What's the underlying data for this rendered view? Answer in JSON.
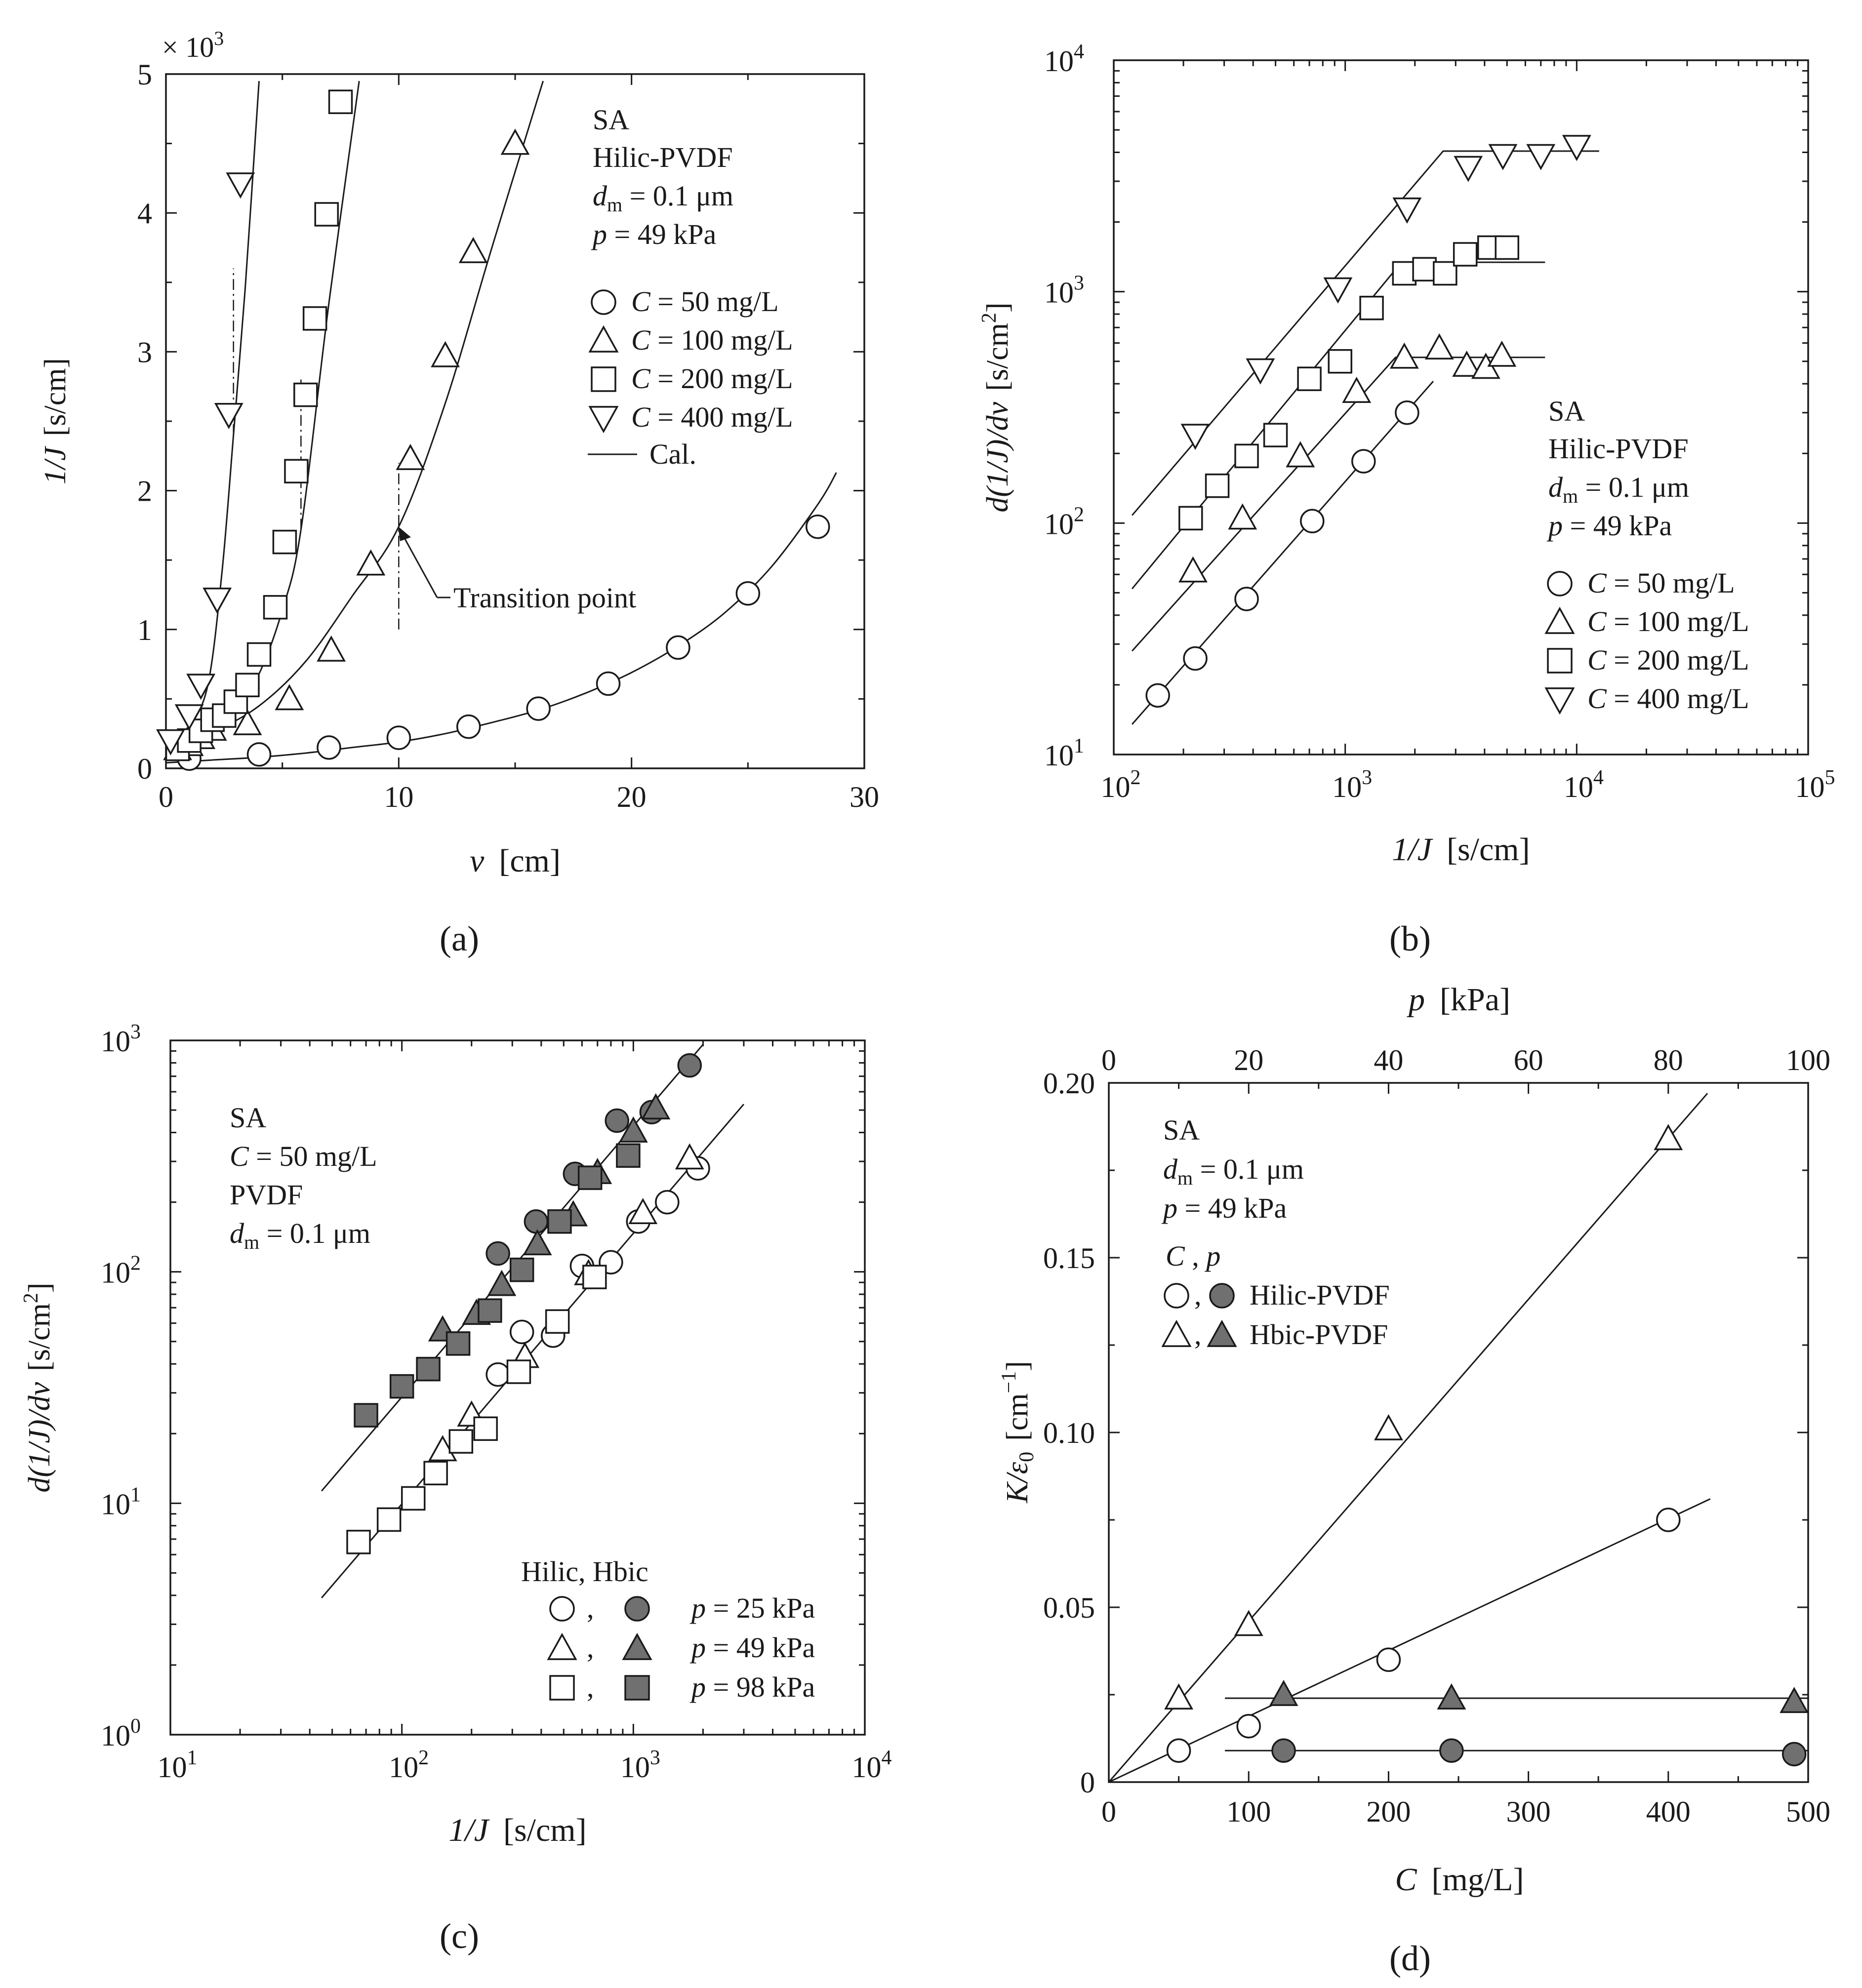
{
  "chart_data": [
    {
      "panel": "a",
      "type": "scatter",
      "caption": "(a)",
      "xlabel": "v",
      "xunit": "[cm]",
      "ylabel": "1/J",
      "yunit": "[s/cm]",
      "multiplier": "× 10",
      "multiplier_exp": "3",
      "xscale": "linear",
      "yscale": "linear",
      "xlim": [
        0,
        30
      ],
      "ylim": [
        0,
        5
      ],
      "xticks": [
        0,
        10,
        20,
        30
      ],
      "xtick_labels": [
        "0",
        "10",
        "20",
        "30"
      ],
      "yticks": [
        0,
        1,
        2,
        3,
        4,
        5
      ],
      "ytick_labels": [
        "0",
        "1",
        "2",
        "3",
        "4",
        "5"
      ],
      "legend_lines": [
        "SA",
        "Hilic-PVDF",
        "d_m = 0.1 μm",
        "p = 49 kPa"
      ],
      "legend_title_text": "SA",
      "legend_membrane": "Hilic-PVDF",
      "legend_dm_sym": "d",
      "legend_dm_sub": "m",
      "legend_dm_val": " = 0.1 μm",
      "legend_p_sym": "p",
      "legend_p_val": " = 49 kPa",
      "legend_placement": "top-right",
      "annotation": "Transition point",
      "cal_label": "Cal.",
      "series": [
        {
          "name": "C = 50 mg/L",
          "sym": "C",
          "text": " =   50 mg/L",
          "marker": "circle",
          "fill": "open",
          "x": [
            1,
            4,
            7,
            10,
            13,
            16,
            19,
            22,
            25,
            28
          ],
          "y": [
            0.07,
            0.1,
            0.15,
            0.22,
            0.3,
            0.43,
            0.61,
            0.87,
            1.26,
            1.74
          ]
        },
        {
          "name": "C = 100 mg/L",
          "sym": "C",
          "text": " = 100 mg/L",
          "marker": "triangle-up",
          "fill": "open",
          "x": [
            0.5,
            1.0,
            1.5,
            2.0,
            3.5,
            5.3,
            7.1,
            8.8,
            10.5,
            12.0,
            13.2,
            15.0
          ],
          "y": [
            0.14,
            0.17,
            0.22,
            0.28,
            0.32,
            0.5,
            0.85,
            1.47,
            2.23,
            2.97,
            3.72,
            4.5
          ]
        },
        {
          "name": "C = 200 mg/L",
          "sym": "C",
          "text": " = 200 mg/L",
          "marker": "square",
          "fill": "open",
          "x": [
            0.5,
            1.0,
            1.5,
            2.0,
            2.5,
            3.0,
            3.5,
            4.0,
            4.7,
            5.1,
            5.6,
            6.0,
            6.4,
            6.9,
            7.5
          ],
          "y": [
            0.14,
            0.2,
            0.27,
            0.35,
            0.38,
            0.48,
            0.6,
            0.82,
            1.16,
            1.63,
            2.14,
            2.69,
            3.24,
            3.99,
            4.8
          ]
        },
        {
          "name": "C = 400 mg/L",
          "sym": "C",
          "text": " = 400 mg/L",
          "marker": "triangle-down",
          "fill": "open",
          "x": [
            0.2,
            1.0,
            1.5,
            2.2,
            2.7,
            3.2
          ],
          "y": [
            0.2,
            0.38,
            0.6,
            1.22,
            2.55,
            4.21
          ]
        }
      ],
      "fit_curves": [
        {
          "name": "Cal. 50",
          "x": [
            0,
            2,
            4,
            6,
            8,
            10,
            12,
            14,
            16,
            18,
            20,
            22,
            24,
            26,
            28,
            28.8
          ],
          "y": [
            0.04,
            0.06,
            0.08,
            0.11,
            0.15,
            0.19,
            0.25,
            0.33,
            0.42,
            0.54,
            0.69,
            0.88,
            1.12,
            1.45,
            1.9,
            2.13
          ]
        },
        {
          "name": "Cal. 100",
          "x": [
            0,
            2,
            4,
            6,
            8,
            10,
            12,
            14,
            16.2
          ],
          "y": [
            0.12,
            0.26,
            0.45,
            0.77,
            1.24,
            1.74,
            2.63,
            3.75,
            4.95
          ]
        },
        {
          "name": "Cal. 200",
          "x": [
            0,
            1,
            2,
            3,
            4,
            5,
            5.8,
            7,
            8.3
          ],
          "y": [
            0.12,
            0.2,
            0.3,
            0.42,
            0.68,
            1.14,
            1.72,
            3.35,
            4.95
          ]
        },
        {
          "name": "Cal. 400",
          "x": [
            0,
            1,
            1.8,
            2.4,
            2.9,
            3.4,
            4.0
          ],
          "y": [
            0.14,
            0.31,
            0.6,
            1.4,
            2.4,
            3.45,
            4.95
          ]
        }
      ],
      "transition_markers": [
        {
          "x": 2.9,
          "y_from": 2.4,
          "y_to": 3.6
        },
        {
          "x": 5.8,
          "y_from": 1.72,
          "y_to": 2.8
        },
        {
          "x": 10.0,
          "y_from": 1.0,
          "y_to": 2.2
        }
      ]
    },
    {
      "panel": "b",
      "type": "scatter",
      "caption": "(b)",
      "xlabel": "1/J",
      "xunit": "[s/cm]",
      "ylabel": "d(1/J)/dv",
      "yunit": "[s/cm",
      "yunit_sup": "2",
      "yunit_end": "]",
      "xscale": "log",
      "yscale": "log",
      "xlim": [
        100,
        100000
      ],
      "ylim": [
        10,
        10000
      ],
      "xticks": [
        100,
        1000,
        10000,
        100000
      ],
      "xtick_base": "10",
      "xtick_exps": [
        "2",
        "3",
        "4",
        "5"
      ],
      "yticks": [
        10,
        100,
        1000,
        10000
      ],
      "ytick_base": "10",
      "ytick_exps": [
        "1",
        "2",
        "3",
        "4"
      ],
      "legend_lines": [
        "SA",
        "Hilic-PVDF",
        "d_m = 0.1 μm",
        "p = 49 kPa"
      ],
      "legend_title_text": "SA",
      "legend_membrane": "Hilic-PVDF",
      "legend_dm_sym": "d",
      "legend_dm_sub": "m",
      "legend_dm_val": " = 0.1 μm",
      "legend_p_sym": "p",
      "legend_p_val": " = 49 kPa",
      "legend_placement": "bottom-right",
      "series": [
        {
          "name": "C = 50 mg/L",
          "sym": "C",
          "text": " =   50 mg/L",
          "marker": "circle",
          "fill": "open",
          "x": [
            155,
            225,
            375,
            720,
            1200,
            1850
          ],
          "y": [
            18,
            26,
            47,
            102,
            185,
            300
          ]
        },
        {
          "name": "C = 100 mg/L",
          "sym": "C",
          "text": " = 100 mg/L",
          "marker": "triangle-up",
          "fill": "open",
          "x": [
            220,
            360,
            640,
            1120,
            1800,
            2550,
            3350,
            4050,
            4750
          ],
          "y": [
            62,
            105,
            195,
            370,
            520,
            570,
            480,
            470,
            530
          ]
        },
        {
          "name": "C = 200 mg/L",
          "sym": "C",
          "text": " = 200 mg/L",
          "marker": "square",
          "fill": "open",
          "x": [
            215,
            280,
            375,
            500,
            700,
            950,
            1300,
            1800,
            2200,
            2700,
            3300,
            4200,
            5000
          ],
          "y": [
            105,
            145,
            195,
            240,
            420,
            500,
            850,
            1200,
            1250,
            1200,
            1450,
            1550,
            1550
          ]
        },
        {
          "name": "C = 400 mg/L",
          "sym": "C",
          "text": " = 400 mg/L",
          "marker": "triangle-down",
          "fill": "open",
          "x": [
            225,
            430,
            930,
            1850,
            3400,
            4800,
            7000,
            10000
          ],
          "y": [
            240,
            460,
            1030,
            2280,
            3450,
            3880,
            3880,
            4250
          ]
        }
      ],
      "fit_lines": [
        {
          "name": "Cal. 50",
          "x": [
            120,
            2400
          ],
          "y": [
            13.5,
            410
          ]
        },
        {
          "name": "Cal. 100",
          "x": [
            120,
            1650,
            7300
          ],
          "y": [
            28,
            520,
            520
          ]
        },
        {
          "name": "Cal. 200",
          "x": [
            120,
            1750,
            7300
          ],
          "y": [
            52,
            1340,
            1340
          ]
        },
        {
          "name": "Cal. 400",
          "x": [
            120,
            2650,
            12500
          ],
          "y": [
            108,
            4050,
            4050
          ]
        }
      ]
    },
    {
      "panel": "c",
      "type": "scatter",
      "caption": "(c)",
      "xlabel": "1/J",
      "xunit": "[s/cm]",
      "ylabel": "d(1/J)/dv",
      "yunit": "[s/cm",
      "yunit_sup": "2",
      "yunit_end": "]",
      "xscale": "log",
      "yscale": "log",
      "xlim": [
        10,
        10000
      ],
      "ylim": [
        1,
        1000
      ],
      "xticks": [
        10,
        100,
        1000,
        10000
      ],
      "xtick_base": "10",
      "xtick_exps": [
        "1",
        "2",
        "3",
        "4"
      ],
      "yticks": [
        1,
        10,
        100,
        1000
      ],
      "ytick_base": "10",
      "ytick_exps": [
        "0",
        "1",
        "2",
        "3"
      ],
      "legend_lines": [
        "SA",
        "C = 50 mg/L",
        "PVDF",
        "d_m = 0.1 μm"
      ],
      "legend_title_text": "SA",
      "legend_c_sym": "C",
      "legend_c_val": " = 50 mg/L",
      "legend_membrane": "PVDF",
      "legend_dm_sym": "d",
      "legend_dm_sub": "m",
      "legend_dm_val": " = 0.1 μm",
      "legend_header": "Hilic, Hbic",
      "legend_comma": ",",
      "legend_placement": "top-left and bottom-right",
      "pressure_rows": [
        {
          "sym": "p",
          "text": " = 25 kPa",
          "marker": "circle"
        },
        {
          "sym": "p",
          "text": " = 49 kPa",
          "marker": "triangle-up"
        },
        {
          "sym": "p",
          "text": " = 98 kPa",
          "marker": "square"
        }
      ],
      "series": [
        {
          "name": "Hilic p = 25 kPa",
          "marker": "circle",
          "fill": "open",
          "x": [
            260,
            330,
            450,
            600,
            800,
            1050,
            1400,
            1900
          ],
          "y": [
            36,
            55,
            53,
            106,
            110,
            165,
            200,
            280
          ]
        },
        {
          "name": "Hilic p = 49 kPa",
          "marker": "triangle-up",
          "fill": "open",
          "x": [
            150,
            200,
            340,
            640,
            1100,
            1750
          ],
          "y": [
            17,
            24,
            43,
            98,
            180,
            310
          ]
        },
        {
          "name": "Hilic p = 98 kPa",
          "marker": "square",
          "fill": "open",
          "x": [
            65,
            88,
            112,
            140,
            180,
            230,
            320,
            470,
            680
          ],
          "y": [
            6.8,
            8.5,
            10.5,
            13.5,
            18.5,
            21,
            37,
            61,
            95
          ]
        },
        {
          "name": "Hbic p = 25 kPa",
          "marker": "circle",
          "fill": "filled",
          "x": [
            260,
            380,
            560,
            850,
            1200,
            1750
          ],
          "y": [
            120,
            165,
            265,
            450,
            490,
            780
          ]
        },
        {
          "name": "Hbic p = 49 kPa",
          "marker": "triangle-up",
          "fill": "filled",
          "x": [
            150,
            210,
            270,
            385,
            550,
            700,
            1000,
            1250
          ],
          "y": [
            56,
            66,
            88,
            132,
            176,
            268,
            405,
            510
          ]
        },
        {
          "name": "Hbic p = 98 kPa",
          "marker": "square",
          "fill": "filled",
          "x": [
            70,
            100,
            130,
            175,
            240,
            330,
            480,
            650,
            950
          ],
          "y": [
            24,
            32,
            38,
            49,
            68,
            102,
            165,
            255,
            318
          ]
        }
      ],
      "fit_lines": [
        {
          "name": "Hilic fit",
          "x": [
            45,
            3000
          ],
          "y": [
            3.9,
            530
          ]
        },
        {
          "name": "Hbic fit",
          "x": [
            45,
            2000
          ],
          "y": [
            11.3,
            960
          ]
        }
      ]
    },
    {
      "panel": "d",
      "type": "scatter",
      "caption": "(d)",
      "xlabel": "C",
      "xunit": "[mg/L]",
      "x2label": "p",
      "x2unit": "[kPa]",
      "ylabel": "K/ε",
      "ylabel_sub": "0",
      "yunit": "[cm",
      "yunit_sup": "−1",
      "yunit_end": "]",
      "xscale": "linear",
      "yscale": "linear",
      "xlim": [
        0,
        500
      ],
      "x2lim": [
        0,
        100
      ],
      "ylim": [
        0,
        0.2
      ],
      "xticks": [
        0,
        100,
        200,
        300,
        400,
        500
      ],
      "xtick_labels": [
        "0",
        "100",
        "200",
        "300",
        "400",
        "500"
      ],
      "x2ticks": [
        0,
        20,
        40,
        60,
        80,
        100
      ],
      "x2tick_labels": [
        "0",
        "20",
        "40",
        "60",
        "80",
        "100"
      ],
      "yticks": [
        0,
        0.05,
        0.1,
        0.15,
        0.2
      ],
      "ytick_labels": [
        "0",
        "0.05",
        "0.10",
        "0.15",
        "0.20"
      ],
      "legend_title_text": "SA",
      "legend_dm_sym": "d",
      "legend_dm_sub": "m",
      "legend_dm_val": " = 0.1 μm",
      "legend_p_sym": "p",
      "legend_p_val": " = 49 kPa",
      "legend_cp_c": "C",
      "legend_cp_sep": " ,  ",
      "legend_cp_p": "p",
      "legend_comma": ",",
      "legend_rows": [
        {
          "label": "Hilic-PVDF",
          "marker": "circle"
        },
        {
          "label": "Hbic-PVDF",
          "marker": "triangle-up"
        }
      ],
      "legend_placement": "top-left",
      "series": [
        {
          "name": "Hilic-PVDF vs C",
          "axis": "C",
          "marker": "circle",
          "fill": "open",
          "x": [
            50,
            100,
            200,
            400
          ],
          "y": [
            0.009,
            0.016,
            0.035,
            0.075
          ]
        },
        {
          "name": "Hbic-PVDF vs C",
          "axis": "C",
          "marker": "triangle-up",
          "fill": "open",
          "x": [
            50,
            100,
            200,
            400
          ],
          "y": [
            0.024,
            0.045,
            0.101,
            0.184
          ]
        },
        {
          "name": "Hilic-PVDF vs p",
          "axis": "p",
          "marker": "circle",
          "fill": "filled",
          "x": [
            25,
            49,
            98
          ],
          "y": [
            0.009,
            0.009,
            0.008
          ]
        },
        {
          "name": "Hbic-PVDF vs p",
          "axis": "p",
          "marker": "triangle-up",
          "fill": "filled",
          "x": [
            25,
            49,
            98
          ],
          "y": [
            0.025,
            0.024,
            0.023
          ]
        }
      ],
      "fit_lines": [
        {
          "name": "Hbic fit",
          "x": [
            0,
            428
          ],
          "y": [
            0,
            0.197
          ]
        },
        {
          "name": "Hilic fit",
          "x": [
            0,
            430
          ],
          "y": [
            0,
            0.081
          ]
        },
        {
          "name": "Hbic p fit",
          "x": [
            83,
            500
          ],
          "y": [
            0.024,
            0.024
          ]
        },
        {
          "name": "Hilic p fit",
          "x": [
            83,
            500
          ],
          "y": [
            0.009,
            0.009
          ]
        }
      ]
    }
  ]
}
